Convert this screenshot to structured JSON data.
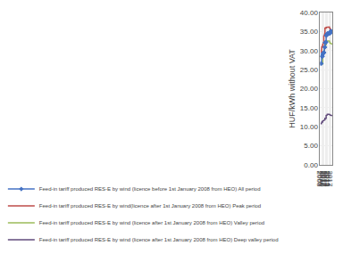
{
  "chart_data": {
    "type": "line",
    "ylabel": "HUF/kWh without VAT",
    "x": [
      2008.0,
      2008.75,
      2009.0,
      2009.5,
      2009.75,
      2009.75,
      2010.0,
      2010.5,
      2010.75,
      2010.75,
      2011.0,
      2011.5,
      2011.75,
      2011.75,
      2012.0,
      2012.5,
      2012.75,
      2012.75,
      2013.0,
      2013.5,
      2013.75,
      2013.75,
      2014.0,
      2014.5,
      2015.0,
      2015.5,
      2016.0,
      2016.5,
      2017.0,
      2017.5,
      2017.85
    ],
    "series": [
      {
        "name": "Feed-in tariff produced RES-E by wind (licence after 1st January 2008 from HEO) Deep valley period",
        "color": "#604a7b",
        "values": [
          10.8,
          10.8,
          11.2,
          11.2,
          11.2,
          11.5,
          11.5,
          11.65,
          11.65,
          11.65,
          11.65,
          11.9,
          11.9,
          12.2,
          12.2,
          12.2,
          12.2,
          13.0,
          13.0,
          13.1,
          13.1,
          13.3,
          13.3,
          13.3,
          13.3,
          13.3,
          13.1,
          13.05,
          12.95,
          12.9,
          12.9
        ]
      },
      {
        "name": "Feed-in tariff produced RES-E by wind (licence after 1st January 2008 from HEO) Valley period",
        "color": "#9bbb59",
        "values": [
          26.5,
          26.5,
          26.5,
          26.5,
          26.5,
          28.8,
          28.8,
          29.5,
          29.5,
          29.5,
          29.5,
          30.9,
          30.9,
          31.5,
          31.5,
          31.5,
          31.5,
          32.5,
          32.5,
          32.5,
          32.5,
          32.5,
          32.5,
          32.5,
          32.5,
          32.5,
          32.0,
          31.9,
          31.8,
          31.8,
          31.7
        ]
      },
      {
        "name": "Feed-in tariff produced RES-E by wind(licence after 1st January 2008 from HEO) Peak period",
        "color": "#be4b48",
        "values": [
          29.6,
          29.6,
          31.0,
          31.0,
          31.0,
          31.5,
          31.5,
          32.1,
          32.1,
          33.8,
          33.8,
          34.4,
          34.4,
          35.9,
          35.9,
          35.9,
          35.9,
          36.1,
          36.1,
          36.1,
          36.1,
          36.2,
          36.2,
          36.2,
          36.2,
          36.2,
          35.7,
          35.7,
          35.2,
          35.1,
          35.0
        ]
      },
      {
        "name": "Feed-in tariff produced RES-E by wind (licence before 1st January 2008 from HEO) All period",
        "color": "#4472c4",
        "marker": "diamond",
        "values": [
          26.6,
          26.6,
          28.5,
          28.5,
          28.5,
          29.1,
          29.1,
          29.4,
          29.4,
          29.5,
          29.5,
          30.9,
          30.9,
          32.1,
          32.1,
          32.2,
          32.2,
          34.0,
          34.0,
          34.2,
          34.2,
          34.5,
          34.5,
          34.5,
          34.5,
          34.5,
          34.5,
          35.1,
          35.0,
          35.0,
          34.9
        ]
      }
    ],
    "xlim": [
      2007.7,
      2017.95
    ],
    "xticks": [
      2008,
      2009,
      2010,
      2011,
      2012,
      2013,
      2014,
      2015,
      2016,
      2017
    ],
    "ylim": [
      0,
      40
    ],
    "yticks": [
      {
        "value": 0,
        "label": "0.00"
      },
      {
        "value": 5,
        "label": "5.00"
      },
      {
        "value": 10,
        "label": "10.00"
      },
      {
        "value": 15,
        "label": "15.00"
      },
      {
        "value": 20,
        "label": "20.00"
      },
      {
        "value": 25,
        "label": "25.00"
      },
      {
        "value": 30,
        "label": "30.00"
      },
      {
        "value": 35,
        "label": "35.00"
      },
      {
        "value": 40,
        "label": "40.00"
      }
    ],
    "grid": true,
    "legend": "bottom"
  }
}
